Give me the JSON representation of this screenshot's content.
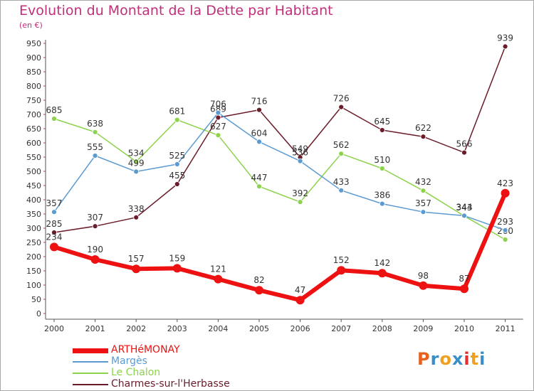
{
  "header": {
    "title": "Evolution du Montant de la Dette par Habitant",
    "unit": "(en €)"
  },
  "logo": {
    "text": "Proxiti",
    "colors": [
      "#e8601c",
      "#3a8ec8",
      "#f0a020",
      "#3a8ec8",
      "#e03030",
      "#f0a020",
      "#3a8ec8"
    ]
  },
  "chart_data": {
    "type": "line",
    "title": "Evolution du Montant de la Dette par Habitant",
    "subtitle": "(en €)",
    "x": [
      "2000",
      "2001",
      "2002",
      "2003",
      "2004",
      "2005",
      "2006",
      "2007",
      "2008",
      "2009",
      "2010",
      "2011"
    ],
    "ylim": [
      0,
      950
    ],
    "yticks": [
      0,
      50,
      100,
      150,
      200,
      250,
      300,
      350,
      400,
      450,
      500,
      550,
      600,
      650,
      700,
      750,
      800,
      850,
      900,
      950
    ],
    "grid": false,
    "legend_position": "bottom-left",
    "series": [
      {
        "name": "Charmes-sur-l'Herbasse",
        "color": "#6b1c2a",
        "values": [
          285,
          307,
          338,
          455,
          689,
          716,
          549,
          726,
          645,
          622,
          566,
          939
        ]
      },
      {
        "name": "Le Chalon",
        "color": "#8cd24a",
        "values": [
          685,
          638,
          534,
          681,
          627,
          447,
          392,
          562,
          510,
          432,
          343,
          260
        ]
      },
      {
        "name": "Margès",
        "color": "#5c9bd1",
        "values": [
          357,
          555,
          499,
          525,
          706,
          604,
          536,
          433,
          386,
          357,
          344,
          293
        ]
      },
      {
        "name": "ARTHéMONAY",
        "color": "#ee1111",
        "values": [
          234,
          190,
          157,
          159,
          121,
          82,
          47,
          152,
          142,
          98,
          87,
          423
        ]
      }
    ],
    "data_labels": [
      [
        "285",
        "307",
        "338",
        "455",
        "689",
        "716",
        "549",
        "726",
        "645",
        "622",
        "566",
        "939"
      ],
      [
        "685",
        "638",
        "534",
        "681",
        "627",
        "447",
        "392",
        "562",
        "510",
        "432",
        "343",
        "260"
      ],
      [
        "357",
        "555",
        "499",
        "525",
        "706",
        "604",
        "536",
        "433",
        "386",
        "357",
        "344",
        "293"
      ],
      [
        "234",
        "190",
        "157",
        "159",
        "121",
        "82",
        "47",
        "152",
        "142",
        "98",
        "87",
        "423"
      ]
    ]
  }
}
